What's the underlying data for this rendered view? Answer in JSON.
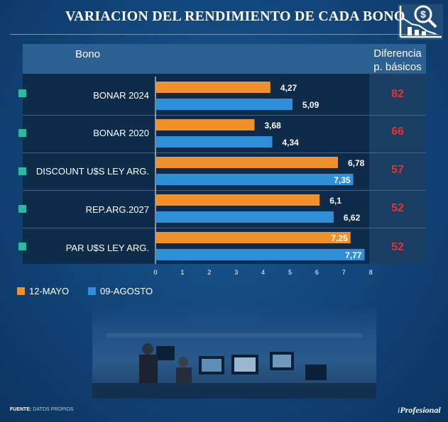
{
  "title": "VARIACION DEL RENDIMIENTO DE CADA BONO",
  "header": {
    "bono": "Bono",
    "diferencia_line1": "Diferencia",
    "diferencia_line2": "p. básicos"
  },
  "legend": [
    {
      "label": "12-MAYO",
      "color": "#f0912c"
    },
    {
      "label": "09-AGOSTO",
      "color": "#2f8fd8"
    }
  ],
  "footer": {
    "source_label": "FUENTE:",
    "source_text": "DATOS PROPIOS",
    "brand_prefix": "i",
    "brand_name": "Profesional"
  },
  "icons": {
    "logo": "money-chart-icon",
    "photo": "trading-floor-photo"
  },
  "colors": {
    "series_12_mayo": "#f0912c",
    "series_09_agosto": "#2f8fd8",
    "diff": "#e8322b",
    "marker": "#2fb8a0"
  },
  "chart_data": {
    "type": "bar",
    "orientation": "horizontal",
    "title": "VARIACION DEL RENDIMIENTO DE CADA BONO",
    "categories": [
      "BONAR 2024",
      "BONAR 2020",
      "DISCOUNT U$S LEY ARG.",
      "REP.ARG.2027",
      "PAR U$S LEY ARG."
    ],
    "series": [
      {
        "name": "12-MAYO",
        "values": [
          4.27,
          3.68,
          6.78,
          6.1,
          7.25
        ],
        "labels": [
          "4,27",
          "3,68",
          "6,78",
          "6,1",
          "7,25"
        ]
      },
      {
        "name": "09-AGOSTO",
        "values": [
          5.09,
          4.34,
          7.35,
          6.62,
          7.77
        ],
        "labels": [
          "5,09",
          "4,34",
          "7,35",
          "6,62",
          "7,77"
        ]
      }
    ],
    "diferencia_pb": [
      "82",
      "66",
      "57",
      "52",
      "52"
    ],
    "xlim": [
      0,
      8
    ],
    "xticks": [
      "0",
      "1",
      "2",
      "3",
      "4",
      "5",
      "6",
      "7",
      "8"
    ],
    "grid": false,
    "legend_position": "bottom-left"
  }
}
